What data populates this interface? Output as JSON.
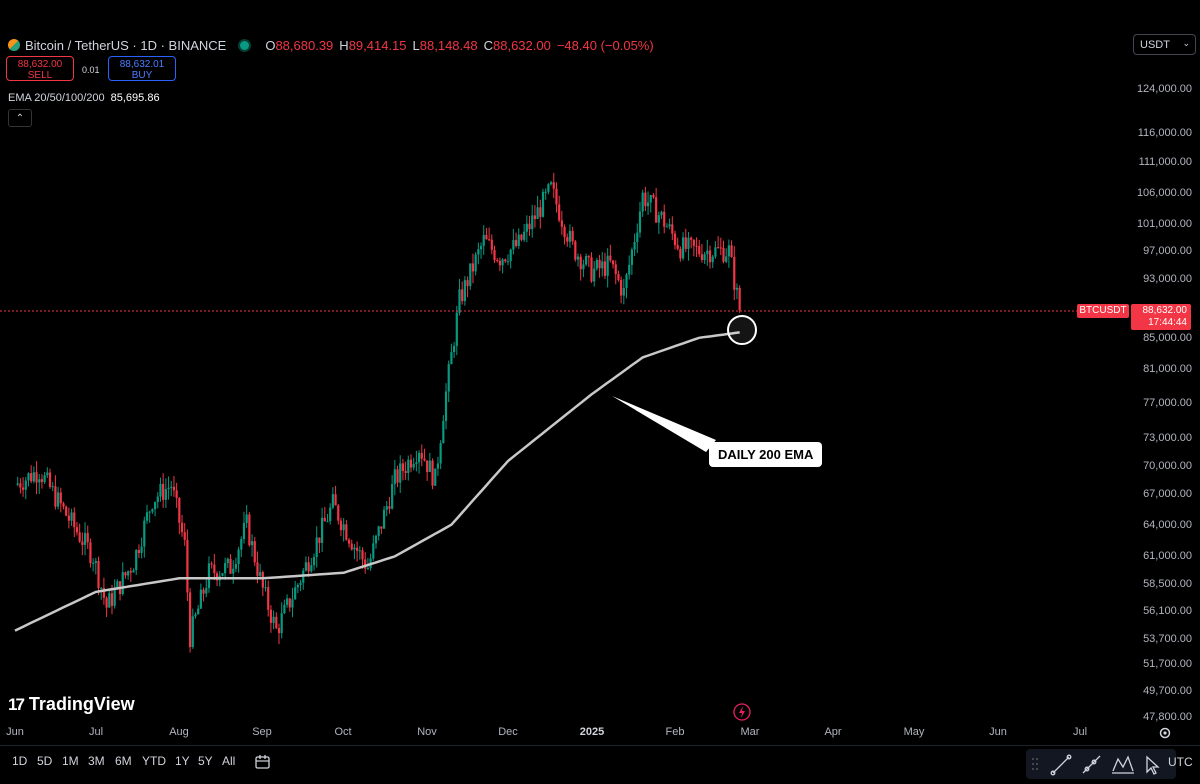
{
  "header": {
    "title": "Bitcoin / TetherUS · 1D · BINANCE",
    "ohlc": {
      "o_label": "O",
      "o_value": "88,680.39",
      "h_label": "H",
      "h_value": "89,414.15",
      "l_label": "L",
      "l_value": "88,148.48",
      "c_label": "C",
      "c_value": "88,632.00",
      "change": "−48.40 (−0.05%)"
    }
  },
  "trade": {
    "sell_price": "88,632.00",
    "sell_label": "SELL",
    "spread": "0.01",
    "buy_price": "88,632.01",
    "buy_label": "BUY"
  },
  "indicator": {
    "name": "EMA 20/50/100/200",
    "value": "85,695.86",
    "collapse_glyph": "⌃"
  },
  "currency": {
    "selected": "USDT"
  },
  "price_axis": {
    "labels": [
      "124,000.00",
      "116,000.00",
      "111,000.00",
      "106,000.00",
      "101,000.00",
      "97,000.00",
      "93,000.00",
      "85,000.00",
      "81,000.00",
      "77,000.00",
      "73,000.00",
      "70,000.00",
      "67,000.00",
      "64,000.00",
      "61,000.00",
      "58,500.00",
      "56,100.00",
      "53,700.00",
      "51,700.00",
      "49,700.00",
      "47,800.00"
    ]
  },
  "last_price": {
    "symbol": "BTCUSDT",
    "price": "88,632.00",
    "countdown": "17:44:44"
  },
  "time_axis": {
    "labels": [
      "Jun",
      "Jul",
      "Aug",
      "Sep",
      "Oct",
      "Nov",
      "Dec",
      "2025",
      "Feb",
      "Mar",
      "Apr",
      "May",
      "Jun",
      "Jul"
    ]
  },
  "annotation": {
    "text": "DAILY 200 EMA"
  },
  "branding": {
    "logo_mark": "17",
    "logo_text": "TradingView"
  },
  "bottom_bar": {
    "ranges": [
      "1D",
      "5D",
      "1M",
      "3M",
      "6M",
      "YTD",
      "1Y",
      "5Y",
      "All"
    ],
    "timezone": "UTC"
  },
  "icons": [
    "symbol-icon",
    "live-status-icon",
    "calendar-icon",
    "settings-icon",
    "lightning-icon",
    "trend-line-icon",
    "ray-icon",
    "pattern-icon",
    "cursor-icon",
    "drag-handle-icon"
  ],
  "colors": {
    "up": "#089981",
    "down": "#f23645",
    "ema": "#c8c8c8",
    "accent": "#2962ff"
  },
  "chart_data": {
    "type": "candlestick",
    "symbol": "BTCUSDT",
    "interval": "1D",
    "x_range": [
      "2024-06",
      "2025-07"
    ],
    "ylim": [
      47800,
      124000
    ],
    "y_scale": "log",
    "price_line": 88632,
    "close_path": [
      {
        "date": "2024-06-01",
        "close": 68000
      },
      {
        "date": "2024-06-10",
        "close": 69500
      },
      {
        "date": "2024-06-20",
        "close": 65000
      },
      {
        "date": "2024-06-30",
        "close": 61000
      },
      {
        "date": "2024-07-05",
        "close": 56500
      },
      {
        "date": "2024-07-15",
        "close": 60500
      },
      {
        "date": "2024-07-22",
        "close": 66500
      },
      {
        "date": "2024-07-29",
        "close": 68000
      },
      {
        "date": "2024-08-03",
        "close": 62000
      },
      {
        "date": "2024-08-05",
        "close": 54000
      },
      {
        "date": "2024-08-12",
        "close": 59500
      },
      {
        "date": "2024-08-20",
        "close": 60000
      },
      {
        "date": "2024-08-26",
        "close": 64000
      },
      {
        "date": "2024-09-01",
        "close": 58000
      },
      {
        "date": "2024-09-06",
        "close": 54500
      },
      {
        "date": "2024-09-15",
        "close": 59000
      },
      {
        "date": "2024-09-27",
        "close": 66000
      },
      {
        "date": "2024-10-05",
        "close": 62000
      },
      {
        "date": "2024-10-10",
        "close": 60000
      },
      {
        "date": "2024-10-20",
        "close": 68500
      },
      {
        "date": "2024-10-29",
        "close": 72000
      },
      {
        "date": "2024-11-04",
        "close": 68500
      },
      {
        "date": "2024-11-07",
        "close": 76000
      },
      {
        "date": "2024-11-13",
        "close": 90000
      },
      {
        "date": "2024-11-22",
        "close": 98500
      },
      {
        "date": "2024-11-28",
        "close": 96000
      },
      {
        "date": "2024-12-05",
        "close": 98000
      },
      {
        "date": "2024-12-17",
        "close": 106500
      },
      {
        "date": "2024-12-25",
        "close": 97500
      },
      {
        "date": "2025-01-01",
        "close": 94000
      },
      {
        "date": "2025-01-08",
        "close": 95000
      },
      {
        "date": "2025-01-13",
        "close": 91000
      },
      {
        "date": "2025-01-20",
        "close": 105500
      },
      {
        "date": "2025-01-27",
        "close": 102000
      },
      {
        "date": "2025-02-03",
        "close": 97500
      },
      {
        "date": "2025-02-10",
        "close": 97000
      },
      {
        "date": "2025-02-21",
        "close": 97000
      },
      {
        "date": "2025-02-25",
        "close": 88632
      }
    ],
    "ema200": [
      {
        "date": "2024-06-01",
        "value": 54500
      },
      {
        "date": "2024-07-01",
        "value": 57800
      },
      {
        "date": "2024-08-01",
        "value": 59000
      },
      {
        "date": "2024-09-01",
        "value": 59000
      },
      {
        "date": "2024-10-01",
        "value": 59500
      },
      {
        "date": "2024-10-20",
        "value": 61000
      },
      {
        "date": "2024-11-10",
        "value": 64000
      },
      {
        "date": "2024-12-01",
        "value": 70500
      },
      {
        "date": "2025-01-01",
        "value": 78000
      },
      {
        "date": "2025-01-20",
        "value": 82500
      },
      {
        "date": "2025-02-10",
        "value": 85000
      },
      {
        "date": "2025-02-25",
        "value": 85695.86
      }
    ]
  }
}
